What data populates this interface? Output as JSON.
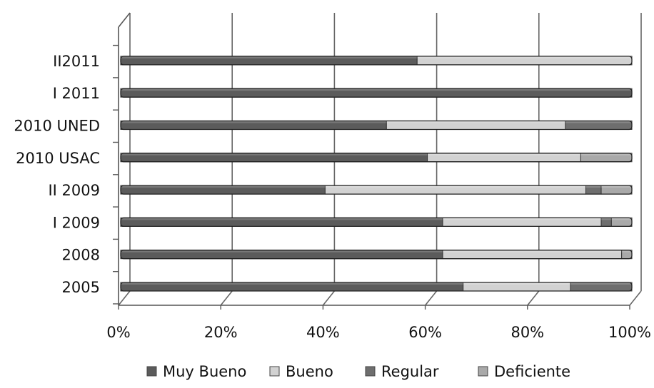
{
  "chart_data": {
    "type": "bar",
    "orientation": "horizontal",
    "stacked": "percent",
    "categories": [
      "2005",
      "2008",
      "I 2009",
      "II 2009",
      "2010 USAC",
      "2010 UNED",
      "I 2011",
      "II2011"
    ],
    "series": [
      {
        "name": "Muy Bueno",
        "color": "#5b5b5b",
        "values": [
          67,
          63,
          63,
          40,
          60,
          52,
          100,
          58
        ]
      },
      {
        "name": "Bueno",
        "color": "#d2d2d2",
        "values": [
          21,
          35,
          31,
          51,
          30,
          35,
          0,
          42
        ]
      },
      {
        "name": "Regular",
        "color": "#6e6e6e",
        "values": [
          12,
          0,
          2,
          3,
          0,
          13,
          0,
          0
        ]
      },
      {
        "name": "Deficiente",
        "color": "#a9a9a9",
        "values": [
          0,
          2,
          4,
          6,
          10,
          0,
          0,
          0
        ]
      }
    ],
    "xlim": [
      0,
      100
    ],
    "xticks": [
      "0%",
      "20%",
      "40%",
      "60%",
      "80%",
      "100%"
    ],
    "grid": true,
    "legend_position": "bottom"
  }
}
